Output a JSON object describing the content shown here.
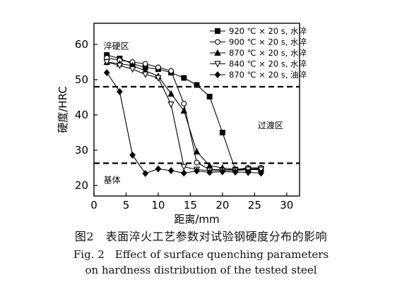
{
  "chart_data": {
    "type": "line",
    "xlabel": "距离/mm",
    "ylabel": "硬度/HRC",
    "xlim": [
      0,
      32
    ],
    "ylim": [
      17,
      66
    ],
    "xticks": [
      0,
      5,
      10,
      15,
      20,
      25,
      30
    ],
    "yticks": [
      20,
      30,
      40,
      50,
      60
    ],
    "grid": false,
    "legend_position": "top-right",
    "reference_lines": [
      {
        "axis": "y",
        "value": 48,
        "style": "dashed"
      },
      {
        "axis": "y",
        "value": 26.3,
        "style": "dashed"
      }
    ],
    "annotations": [
      {
        "text": "淬硬区",
        "x": 1.5,
        "y": 59.5
      },
      {
        "text": "过渡区",
        "x": 25.5,
        "y": 37
      },
      {
        "text": "基体",
        "x": 1.5,
        "y": 21.5
      }
    ],
    "series": [
      {
        "name": "920 ℃ × 20 s, 水淬",
        "marker": "square-filled",
        "x": [
          2,
          4,
          6,
          8,
          10,
          12,
          14,
          16,
          18,
          20,
          22,
          24,
          26
        ],
        "y": [
          57,
          56,
          54.5,
          53.5,
          53,
          52,
          50.5,
          48.5,
          45.2,
          35,
          24.5,
          24.7,
          24.8
        ]
      },
      {
        "name": "900 ℃ × 20 s, 水淬",
        "marker": "circle-open",
        "x": [
          2,
          4,
          6,
          8,
          10,
          12,
          14,
          16,
          18,
          20,
          22,
          24,
          26
        ],
        "y": [
          56.2,
          55.5,
          55,
          54.5,
          53.5,
          52.5,
          43.2,
          26.5,
          24.5,
          24.5,
          24.5,
          25,
          25
        ]
      },
      {
        "name": "870 ℃ × 20 s, 水淬",
        "marker": "triangle-up-filled",
        "x": [
          2,
          4,
          6,
          8,
          10,
          12,
          14,
          16,
          18,
          20,
          22,
          24,
          26
        ],
        "y": [
          55,
          54.5,
          54,
          52.5,
          51,
          46,
          41.2,
          29.6,
          25.6,
          25,
          24.5,
          24.7,
          24.6
        ]
      },
      {
        "name": "840 ℃ × 20 s, 水淬",
        "marker": "triangle-down-open",
        "x": [
          2,
          4,
          6,
          8,
          10,
          12,
          14,
          16,
          18,
          20,
          22,
          24,
          26
        ],
        "y": [
          55,
          54,
          53,
          51.5,
          50.5,
          43,
          25.3,
          24.5,
          24.2,
          24.2,
          24.2,
          24.5,
          24.5
        ]
      },
      {
        "name": "870 ℃ × 20 s, 油淬",
        "marker": "diamond-filled",
        "x": [
          2,
          4,
          6,
          8,
          10,
          12,
          14,
          16,
          18,
          20,
          22,
          24,
          26
        ],
        "y": [
          52,
          46.6,
          28.6,
          23.4,
          24.7,
          24.2,
          23.5,
          24.1,
          23.7,
          23.9,
          23.8,
          23.7,
          23.5
        ]
      }
    ]
  },
  "captions": {
    "cn": "图2　表面淬火工艺参数对试验钢硬度分布的影响",
    "en_line1": "Fig. 2　Effect of surface quenching parameters",
    "en_line2": "on hardness distribution of the tested steel"
  }
}
